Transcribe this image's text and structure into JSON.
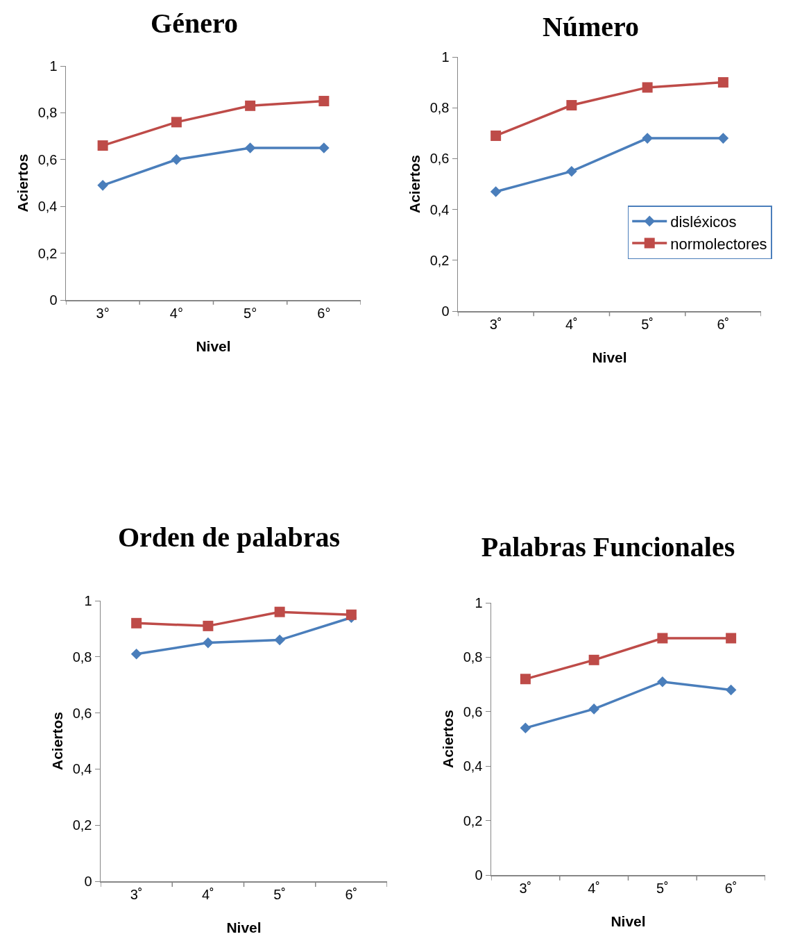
{
  "chart_data": [
    {
      "type": "line",
      "title": "Género",
      "xlabel": "Nivel",
      "ylabel": "Aciertos",
      "categories": [
        "3°",
        "4°",
        "5°",
        "6°"
      ],
      "ylim": [
        0,
        1
      ],
      "yticks": [
        {
          "value": 0,
          "label": "0"
        },
        {
          "value": 0.2,
          "label": "0,2"
        },
        {
          "value": 0.4,
          "label": "0,4"
        },
        {
          "value": 0.6,
          "label": "0,6"
        },
        {
          "value": 0.8,
          "label": "0,8"
        },
        {
          "value": 1,
          "label": "1"
        }
      ],
      "grid": false,
      "legend": false,
      "series": [
        {
          "color": "#4a7ebb",
          "marker": "diamond",
          "values": [
            0.49,
            0.6,
            0.65,
            0.65
          ]
        },
        {
          "color": "#be4b48",
          "marker": "square",
          "values": [
            0.66,
            0.76,
            0.83,
            0.85
          ]
        }
      ]
    },
    {
      "type": "line",
      "title": "Número",
      "xlabel": "Nivel",
      "ylabel": "Aciertos",
      "categories": [
        "3˚",
        "4˚",
        "5˚",
        "6˚"
      ],
      "ylim": [
        0,
        1
      ],
      "yticks": [
        {
          "value": 0,
          "label": "0"
        },
        {
          "value": 0.2,
          "label": "0,2"
        },
        {
          "value": 0.4,
          "label": "0,4"
        },
        {
          "value": 0.6,
          "label": "0,6"
        },
        {
          "value": 0.8,
          "label": "0,8"
        },
        {
          "value": 1,
          "label": "1"
        }
      ],
      "grid": false,
      "legend": "right",
      "series": [
        {
          "name": "disléxicos",
          "color": "#4a7ebb",
          "marker": "diamond",
          "values": [
            0.47,
            0.55,
            0.68,
            0.68
          ]
        },
        {
          "name": "normolectores",
          "color": "#be4b48",
          "marker": "square",
          "values": [
            0.69,
            0.81,
            0.88,
            0.9
          ]
        }
      ]
    },
    {
      "type": "line",
      "title": "Orden de palabras",
      "xlabel": "Nivel",
      "ylabel": "Aciertos",
      "categories": [
        "3˚",
        "4˚",
        "5˚",
        "6˚"
      ],
      "ylim": [
        0,
        1
      ],
      "yticks": [
        {
          "value": 0,
          "label": "0"
        },
        {
          "value": 0.2,
          "label": "0,2"
        },
        {
          "value": 0.4,
          "label": "0,4"
        },
        {
          "value": 0.6,
          "label": "0,6"
        },
        {
          "value": 0.8,
          "label": "0,8"
        },
        {
          "value": 1,
          "label": "1"
        }
      ],
      "grid": false,
      "legend": false,
      "series": [
        {
          "color": "#4a7ebb",
          "marker": "diamond",
          "values": [
            0.81,
            0.85,
            0.86,
            0.94
          ]
        },
        {
          "color": "#be4b48",
          "marker": "square",
          "values": [
            0.92,
            0.91,
            0.96,
            0.95
          ]
        }
      ]
    },
    {
      "type": "line",
      "title": "Palabras Funcionales",
      "xlabel": "Nivel",
      "ylabel": "Aciertos",
      "categories": [
        "3˚",
        "4˚",
        "5˚",
        "6˚"
      ],
      "ylim": [
        0,
        1
      ],
      "yticks": [
        {
          "value": 0,
          "label": "0"
        },
        {
          "value": 0.2,
          "label": "0,2"
        },
        {
          "value": 0.4,
          "label": "0,4"
        },
        {
          "value": 0.6,
          "label": "0,6"
        },
        {
          "value": 0.8,
          "label": "0,8"
        },
        {
          "value": 1,
          "label": "1"
        }
      ],
      "grid": false,
      "legend": false,
      "series": [
        {
          "color": "#4a7ebb",
          "marker": "diamond",
          "values": [
            0.54,
            0.61,
            0.71,
            0.68
          ]
        },
        {
          "color": "#be4b48",
          "marker": "square",
          "values": [
            0.72,
            0.79,
            0.87,
            0.87
          ]
        }
      ]
    }
  ]
}
